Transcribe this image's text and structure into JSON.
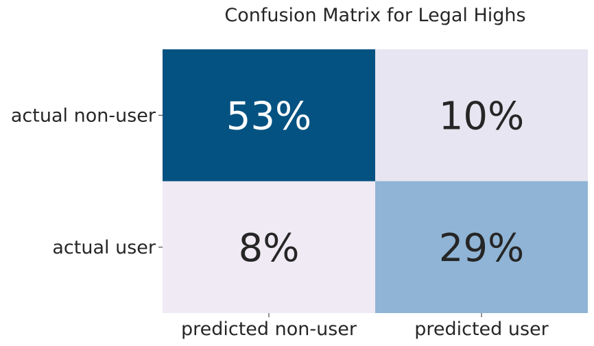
{
  "chart_data": {
    "type": "heatmap",
    "title": "Confusion Matrix for Legal Highs",
    "xlabel": "",
    "ylabel": "",
    "x_categories": [
      "predicted non-user",
      "predicted user"
    ],
    "y_categories": [
      "actual non-user",
      "actual user"
    ],
    "values": [
      [
        53,
        10
      ],
      [
        8,
        29
      ]
    ],
    "value_labels": [
      [
        "53%",
        "10%"
      ],
      [
        "8%",
        "29%"
      ]
    ],
    "value_unit": "%",
    "colorbar": false,
    "colormap": "PuBu",
    "colors": {
      "low": "#f0eaf4",
      "mid": "#88b0d3",
      "high": "#045281",
      "text_dark": "#262626",
      "text_light": "#ffffff"
    }
  }
}
